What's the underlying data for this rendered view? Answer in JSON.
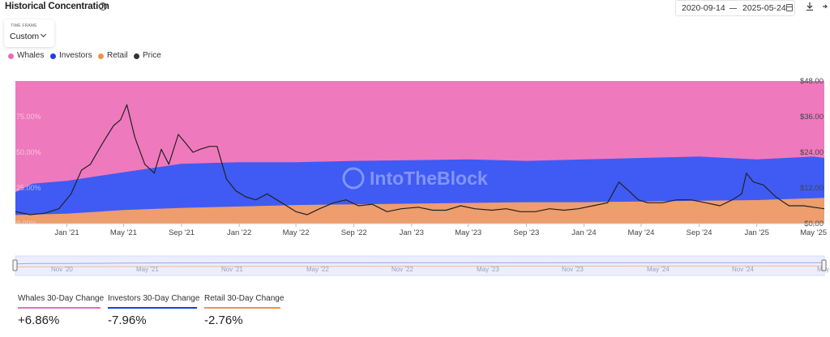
{
  "header": {
    "title": "Historical Concentration",
    "help_icon": "help-circle-icon",
    "date_start": "2020-09-14",
    "date_end": "2025-05-24",
    "calendar_icon": "calendar-icon",
    "download_icon": "download-icon",
    "share_icon": "share-icon"
  },
  "timeframe": {
    "label": "TIME FRAME",
    "value": "Custom"
  },
  "legend": [
    {
      "name": "Whales",
      "color": "#ec6cb8"
    },
    {
      "name": "Investors",
      "color": "#1f3de6"
    },
    {
      "name": "Retail",
      "color": "#f0924f"
    },
    {
      "name": "Price",
      "color": "#333333"
    }
  ],
  "colors": {
    "whales": "#ef79bd",
    "investors": "#3f5bf3",
    "retail": "#ee9d6c",
    "price": "#222222",
    "navigator_bg": "#eceefe"
  },
  "watermark": "IntoTheBlock",
  "chart_data": {
    "type": "area",
    "x_tick_labels": [
      "Jan '21",
      "May '21",
      "Sep '21",
      "Jan '22",
      "May '22",
      "Sep '22",
      "Jan '23",
      "May '23",
      "Sep '23",
      "Jan '24",
      "May '24",
      "Sep '24",
      "Jan '25",
      "May '25"
    ],
    "x_ticks": [
      "2021-01-01",
      "2021-05-01",
      "2021-09-01",
      "2022-01-01",
      "2022-05-01",
      "2022-09-01",
      "2023-01-01",
      "2023-05-01",
      "2023-09-01",
      "2024-01-01",
      "2024-05-01",
      "2024-09-01",
      "2025-01-01",
      "2025-05-01"
    ],
    "navigator_labels": [
      "Nov '20",
      "May '21",
      "Nov '21",
      "May '22",
      "Nov '22",
      "May '23",
      "Nov '23",
      "May '24",
      "Nov '24",
      "May"
    ],
    "x_range": [
      "2020-09-14",
      "2025-05-24"
    ],
    "y_left_labels": [
      "75.00%",
      "50.00%",
      "25.00%",
      "0.00%"
    ],
    "y_left_ticks": [
      75,
      50,
      25,
      0
    ],
    "y_left_range": [
      0,
      100
    ],
    "y_right_labels": [
      "$48.00",
      "$36.00",
      "$24.00",
      "$12.00",
      "$0.00"
    ],
    "y_right_ticks": [
      48,
      36,
      24,
      12,
      0
    ],
    "y_right_range": [
      0,
      48
    ],
    "series": [
      {
        "name": "Retail",
        "unit": "%",
        "x": [
          "2020-09-14",
          "2021-01-01",
          "2021-05-01",
          "2021-09-01",
          "2022-01-01",
          "2022-05-01",
          "2022-09-01",
          "2023-01-01",
          "2023-05-01",
          "2023-09-01",
          "2024-01-01",
          "2024-05-01",
          "2024-09-01",
          "2025-01-01",
          "2025-05-24"
        ],
        "values": [
          6,
          7,
          9.5,
          11,
          12,
          13,
          13.5,
          14,
          14.5,
          15,
          15,
          15.5,
          16,
          16.5,
          18
        ]
      },
      {
        "name": "Investors",
        "unit": "%",
        "x": [
          "2020-09-14",
          "2020-10-20",
          "2021-01-01",
          "2021-05-01",
          "2021-09-01",
          "2022-01-01",
          "2022-05-01",
          "2022-09-01",
          "2023-01-01",
          "2023-05-01",
          "2023-09-01",
          "2024-01-01",
          "2024-05-01",
          "2024-09-01",
          "2025-01-01",
          "2025-05-01",
          "2025-05-24"
        ],
        "values": [
          22,
          28,
          30,
          36,
          42,
          43,
          43,
          44,
          44.5,
          45,
          44,
          45,
          46,
          47,
          45,
          47,
          46
        ]
      },
      {
        "name": "Whales",
        "unit": "%",
        "x": [
          "2020-09-14",
          "2025-05-24"
        ],
        "values": [
          72,
          36
        ]
      },
      {
        "name": "Price",
        "unit": "$",
        "x": [
          "2020-09-14",
          "2020-10-15",
          "2020-11-15",
          "2020-12-15",
          "2021-01-10",
          "2021-02-01",
          "2021-02-20",
          "2021-03-10",
          "2021-03-25",
          "2021-04-10",
          "2021-04-25",
          "2021-05-08",
          "2021-05-25",
          "2021-06-15",
          "2021-07-05",
          "2021-07-20",
          "2021-08-05",
          "2021-08-25",
          "2021-09-10",
          "2021-09-25",
          "2021-10-10",
          "2021-10-30",
          "2021-11-15",
          "2021-12-05",
          "2021-12-25",
          "2022-01-15",
          "2022-02-05",
          "2022-03-01",
          "2022-04-01",
          "2022-05-01",
          "2022-05-25",
          "2022-06-20",
          "2022-07-20",
          "2022-08-15",
          "2022-09-10",
          "2022-10-10",
          "2022-11-10",
          "2022-12-10",
          "2023-01-15",
          "2023-02-15",
          "2023-03-15",
          "2023-04-15",
          "2023-05-15",
          "2023-06-20",
          "2023-07-20",
          "2023-08-20",
          "2023-09-20",
          "2023-10-20",
          "2023-11-20",
          "2023-12-20",
          "2024-01-20",
          "2024-02-20",
          "2024-03-15",
          "2024-04-05",
          "2024-04-25",
          "2024-05-15",
          "2024-06-15",
          "2024-07-15",
          "2024-08-15",
          "2024-09-15",
          "2024-10-15",
          "2024-11-10",
          "2024-11-30",
          "2024-12-10",
          "2024-12-25",
          "2025-01-15",
          "2025-02-10",
          "2025-03-10",
          "2025-04-10",
          "2025-05-24"
        ],
        "values": [
          4,
          3,
          3.5,
          5,
          10,
          18,
          20,
          25,
          29,
          33,
          35,
          40,
          29,
          20,
          17,
          25,
          20,
          30,
          27,
          24,
          25,
          26,
          26,
          15,
          11,
          9,
          8,
          10,
          7,
          4,
          3,
          5,
          7,
          8,
          6,
          6.5,
          4,
          5,
          5.5,
          4.5,
          4.5,
          6,
          5,
          4.5,
          5,
          4,
          4,
          5,
          4.5,
          5,
          6,
          7,
          14,
          11,
          8,
          7,
          7,
          8,
          8,
          7,
          6,
          8,
          10,
          17,
          14,
          13,
          9,
          6,
          6,
          5
        ]
      }
    ]
  },
  "stats": [
    {
      "label": "Whales 30-Day Change",
      "value": "+6.86%",
      "color": "#ec6cb8"
    },
    {
      "label": "Investors 30-Day Change",
      "value": "-7.96%",
      "color": "#1f3de6"
    },
    {
      "label": "Retail 30-Day Change",
      "value": "-2.76%",
      "color": "#f0924f"
    }
  ]
}
